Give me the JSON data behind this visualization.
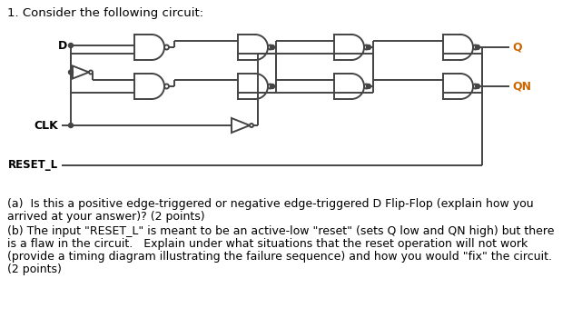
{
  "title_text": "1. Consider the following circuit:",
  "question_a_line1": "(a)  Is this a positive edge-triggered or negative edge-triggered D Flip-Flop (explain how you",
  "question_a_line2": "arrived at your answer)? (2 points)",
  "question_b_line1": "(b) The input \"RESET_L\" is meant to be an active-low \"reset\" (sets Q low and QN high) but there",
  "question_b_line2": "is a flaw in the circuit.   Explain under what situations that the reset operation will not work",
  "question_b_line3": "(provide a timing diagram illustrating the failure sequence) and how you would \"fix\" the circuit.",
  "question_b_line4": "(2 points)",
  "bg_color": "#ffffff",
  "text_color": "#000000",
  "gate_color": "#444444",
  "label_color_Q": "#cc6600",
  "label_color_text": "#000000"
}
